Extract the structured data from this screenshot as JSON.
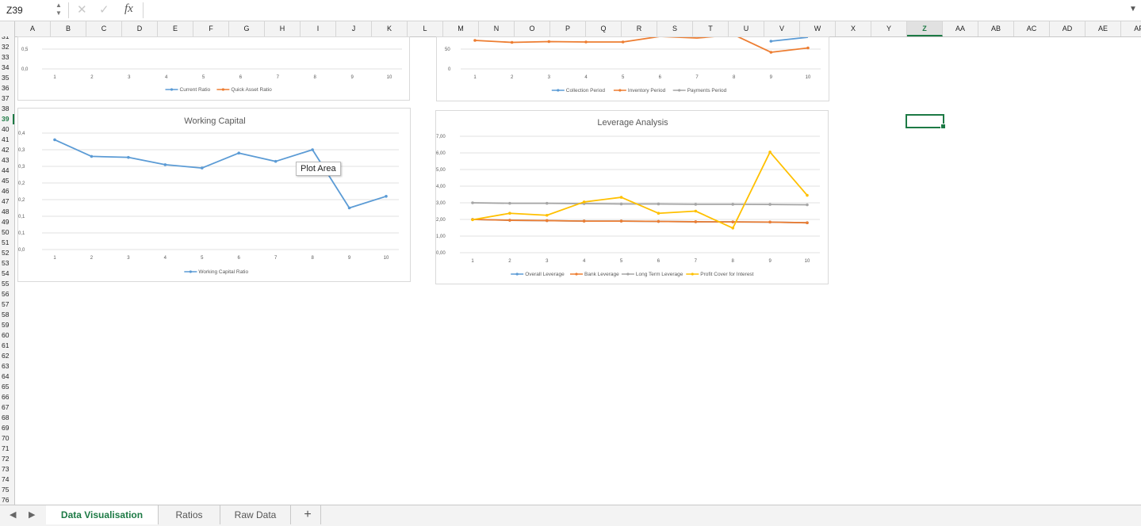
{
  "formula_bar": {
    "name_box": "Z39",
    "formula": "",
    "cancel_glyph": "✕",
    "enter_glyph": "✓",
    "fx_label": "fx"
  },
  "grid": {
    "columns": [
      "A",
      "B",
      "C",
      "D",
      "E",
      "F",
      "G",
      "H",
      "I",
      "J",
      "K",
      "L",
      "M",
      "N",
      "O",
      "P",
      "Q",
      "R",
      "S",
      "T",
      "U",
      "V",
      "W",
      "X",
      "Y",
      "Z",
      "AA",
      "AB",
      "AC",
      "AD",
      "AE",
      "AF"
    ],
    "selected_column": "Z",
    "rows_first": 31,
    "rows_last": 76,
    "selected_row": 39,
    "selected_cell": "Z39"
  },
  "tooltip": {
    "text": "Plot Area"
  },
  "sheet_tabs": {
    "tabs": [
      "Data Visualisation",
      "Ratios",
      "Raw Data"
    ],
    "active": "Data Visualisation",
    "add_label": "+"
  },
  "colors": {
    "blue": "#5b9bd5",
    "orange": "#ed7d31",
    "gray": "#a5a5a5",
    "yellow": "#ffc000",
    "accent_green": "#1d7a45"
  },
  "chart_data": [
    {
      "type": "line",
      "title": "",
      "partially_visible": true,
      "categories": [
        "1",
        "2",
        "3",
        "4",
        "5",
        "6",
        "7",
        "8",
        "9",
        "10"
      ],
      "visible_y_ticks": [
        "0,5",
        "0,0"
      ],
      "series": [
        {
          "name": "Current Ratio",
          "color": "#5b9bd5"
        },
        {
          "name": "Quick Asset Ratio",
          "color": "#ed7d31"
        }
      ],
      "legend_position": "bottom"
    },
    {
      "type": "line",
      "title": "",
      "partially_visible": true,
      "categories": [
        "1",
        "2",
        "3",
        "4",
        "5",
        "6",
        "7",
        "8",
        "9",
        "10"
      ],
      "visible_y_ticks": [
        "50",
        "0"
      ],
      "series": [
        {
          "name": "Collection Period",
          "color": "#5b9bd5",
          "values": [
            null,
            null,
            null,
            null,
            null,
            null,
            null,
            null,
            70,
            80
          ]
        },
        {
          "name": "Inventory Period",
          "color": "#ed7d31",
          "values": [
            72,
            67,
            69,
            68,
            68,
            82,
            78,
            86,
            42,
            53
          ]
        },
        {
          "name": "Payments Period",
          "color": "#a5a5a5"
        }
      ],
      "legend_position": "bottom"
    },
    {
      "type": "line",
      "title": "Working Capital",
      "categories": [
        "1",
        "2",
        "3",
        "4",
        "5",
        "6",
        "7",
        "8",
        "9",
        "10"
      ],
      "y_tick_labels": [
        "0,0",
        "0,1",
        "0,1",
        "0,2",
        "0,2",
        "0,3",
        "0,3",
        "0,4"
      ],
      "ylim": [
        0,
        0.35
      ],
      "series": [
        {
          "name": "Working Capital Ratio",
          "color": "#5b9bd5",
          "values": [
            0.33,
            0.28,
            0.277,
            0.255,
            0.245,
            0.29,
            0.265,
            0.3,
            0.125,
            0.16
          ]
        }
      ],
      "legend_position": "bottom"
    },
    {
      "type": "line",
      "title": "Leverage Analysis",
      "categories": [
        "1",
        "2",
        "3",
        "4",
        "5",
        "6",
        "7",
        "8",
        "9",
        "10"
      ],
      "y_tick_labels": [
        "0,00",
        "1,00",
        "2,00",
        "3,00",
        "4,00",
        "5,00",
        "6,00",
        "7,00"
      ],
      "ylim": [
        0,
        7
      ],
      "series": [
        {
          "name": "Overall Leverage",
          "color": "#5b9bd5",
          "values": [
            2.0,
            1.95,
            1.93,
            1.9,
            1.9,
            1.88,
            1.86,
            1.85,
            1.84,
            1.8
          ]
        },
        {
          "name": "Bank Leverage",
          "color": "#ed7d31",
          "values": [
            2.0,
            1.95,
            1.93,
            1.9,
            1.9,
            1.88,
            1.86,
            1.85,
            1.84,
            1.8
          ]
        },
        {
          "name": "Long Term Leverage",
          "color": "#a5a5a5",
          "values": [
            3.0,
            2.97,
            2.97,
            2.95,
            2.93,
            2.93,
            2.91,
            2.91,
            2.9,
            2.88
          ]
        },
        {
          "name": "Profit Cover for Interest",
          "color": "#ffc000",
          "values": [
            1.98,
            2.37,
            2.25,
            3.05,
            3.33,
            2.37,
            2.5,
            1.48,
            6.05,
            3.45
          ]
        }
      ],
      "legend_position": "bottom"
    }
  ]
}
